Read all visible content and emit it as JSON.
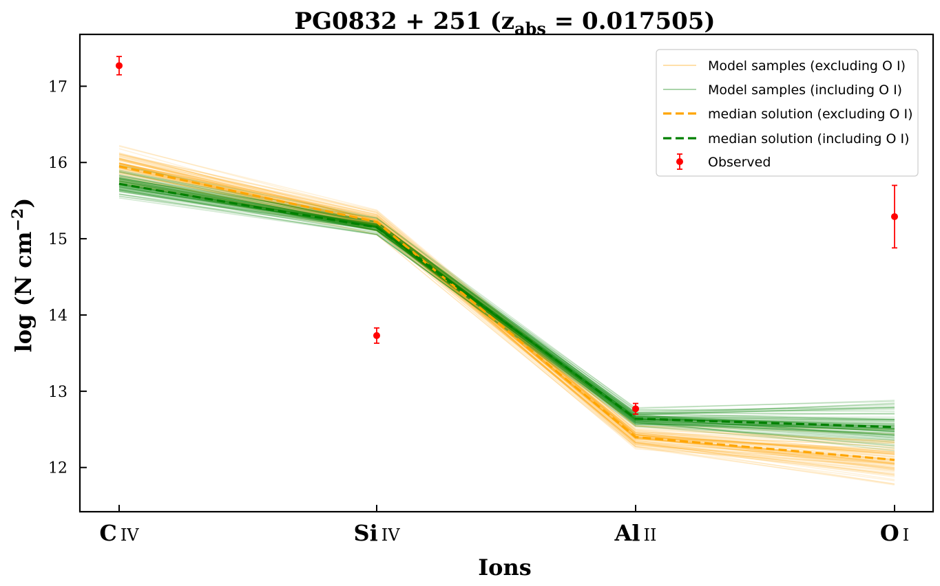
{
  "chart_data": {
    "type": "line",
    "title_main": "PG0832 + 251 (z",
    "title_sub": "abs",
    "title_rest": " = 0.017505)",
    "xlabel": "Ions",
    "ylabel_main": "log (N cm",
    "ylabel_sup": "−2",
    "ylabel_end": ")",
    "categories": [
      {
        "main": "C",
        "sub": "IV"
      },
      {
        "main": "Si",
        "sub": "IV"
      },
      {
        "main": "Al",
        "sub": "II"
      },
      {
        "main": "O",
        "sub": "I"
      }
    ],
    "ylim": [
      11.42,
      17.68
    ],
    "yticks": [
      12,
      13,
      14,
      15,
      16,
      17
    ],
    "ytick_labels": [
      "12",
      "13",
      "14",
      "15",
      "16",
      "17"
    ],
    "grid": false,
    "legend_position": "top-right",
    "legend": [
      {
        "label": "Model samples (excluding O I)",
        "style": "sample-excl"
      },
      {
        "label": "Model samples (including O I)",
        "style": "sample-incl"
      },
      {
        "label": "median solution (excluding O I)",
        "style": "median-excl"
      },
      {
        "label": "median solution (including O I)",
        "style": "median-incl"
      },
      {
        "label": "Observed",
        "style": "observed"
      }
    ],
    "series": [
      {
        "values": [
          15.95,
          15.22,
          12.4,
          12.1
        ],
        "color": "#ffa500",
        "style": "dashed"
      },
      {
        "values": [
          15.72,
          15.15,
          12.64,
          12.53
        ],
        "color": "#008000",
        "style": "dashed"
      }
    ],
    "sample_bands": [
      {
        "color": "#ffa500",
        "center": [
          15.95,
          15.22,
          12.4,
          12.1
        ],
        "spread": [
          0.16,
          0.1,
          0.1,
          0.2
        ]
      },
      {
        "color": "#008000",
        "center": [
          15.72,
          15.15,
          12.64,
          12.53
        ],
        "spread": [
          0.12,
          0.07,
          0.08,
          0.22
        ]
      }
    ],
    "observed": [
      {
        "category": 0,
        "y": 17.27,
        "err": 0.12
      },
      {
        "category": 1,
        "y": 13.73,
        "err": 0.1
      },
      {
        "category": 2,
        "y": 12.77,
        "err": 0.07
      },
      {
        "category": 3,
        "y": 15.29,
        "err": 0.41
      }
    ],
    "colors": {
      "excl": "#ffa500",
      "incl": "#008000",
      "observed": "#ff0000"
    }
  }
}
